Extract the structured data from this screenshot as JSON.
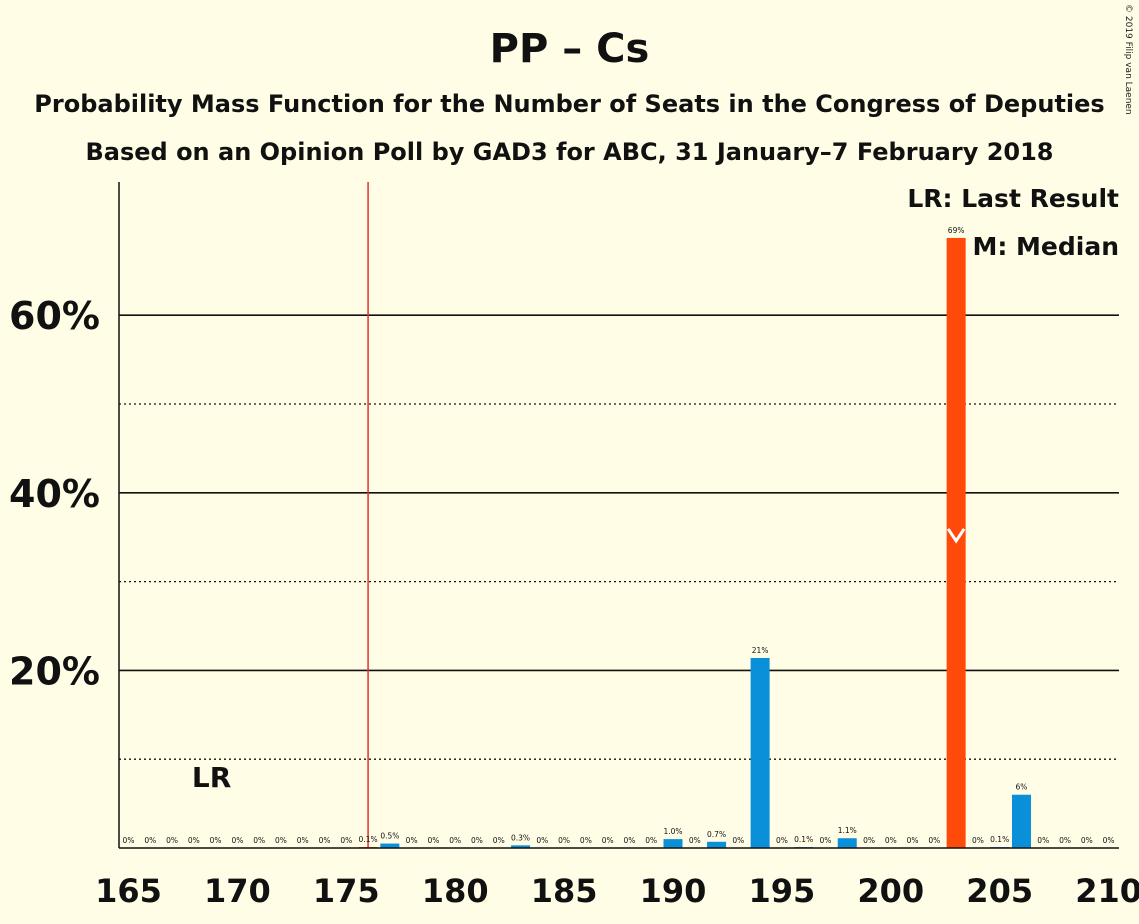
{
  "title": "PP – Cs",
  "subtitle_1": "Probability Mass Function for the Number of Seats in the Congress of Deputies",
  "subtitle_2": "Based on an Opinion Poll by GAD3 for ABC, 31 January–7 February 2018",
  "copyright": "© 2019 Filip van Laenen",
  "legend": {
    "lr": "LR: Last Result",
    "m": "M: Median"
  },
  "colors": {
    "bar": "#0A8FD9",
    "median_bar": "#FF4A0A",
    "majority_line": "#E0322A",
    "background": "#FFFDE6"
  },
  "chart_data": {
    "type": "bar",
    "x": [
      165,
      166,
      167,
      168,
      169,
      170,
      171,
      172,
      173,
      174,
      175,
      176,
      177,
      178,
      179,
      180,
      181,
      182,
      183,
      184,
      185,
      186,
      187,
      188,
      189,
      190,
      191,
      192,
      193,
      194,
      195,
      196,
      197,
      198,
      199,
      200,
      201,
      202,
      203,
      204,
      205,
      206,
      207,
      208,
      209,
      210
    ],
    "values": [
      0,
      0,
      0,
      0,
      0,
      0,
      0,
      0,
      0,
      0,
      0,
      0.1,
      0.5,
      0,
      0,
      0,
      0,
      0,
      0.3,
      0,
      0,
      0,
      0,
      0,
      0,
      1.0,
      0,
      0.7,
      0,
      21.4,
      0,
      0.1,
      0,
      1.1,
      0,
      0,
      0,
      0,
      68.7,
      0,
      0.1,
      6.0,
      0,
      0,
      0,
      0
    ],
    "labels": [
      "0%",
      "0%",
      "0%",
      "0%",
      "0%",
      "0%",
      "0%",
      "0%",
      "0%",
      "0%",
      "0%",
      "0.1%",
      "0.5%",
      "0%",
      "0%",
      "0%",
      "0%",
      "0%",
      "0.3%",
      "0%",
      "0%",
      "0%",
      "0%",
      "0%",
      "0%",
      "1.0%",
      "0%",
      "0.7%",
      "0%",
      "21%",
      "0%",
      "0.1%",
      "0%",
      "1.1%",
      "0%",
      "0%",
      "0%",
      "0%",
      "69%",
      "0%",
      "0.1%",
      "6%",
      "0%",
      "0%",
      "0%",
      "0%"
    ],
    "xticks": [
      165,
      170,
      175,
      180,
      185,
      190,
      195,
      200,
      205,
      210
    ],
    "yticks": [
      20,
      40,
      60
    ],
    "ytick_labels": [
      "20%",
      "40%",
      "60%"
    ],
    "ylim": [
      0,
      75
    ],
    "xlim": [
      164.5,
      210.5
    ],
    "majority_line": 176,
    "last_result": 169,
    "last_result_label": "LR",
    "median": 203,
    "minor_grid": [
      10,
      30,
      50
    ],
    "major_grid": [
      20,
      40,
      60
    ]
  }
}
